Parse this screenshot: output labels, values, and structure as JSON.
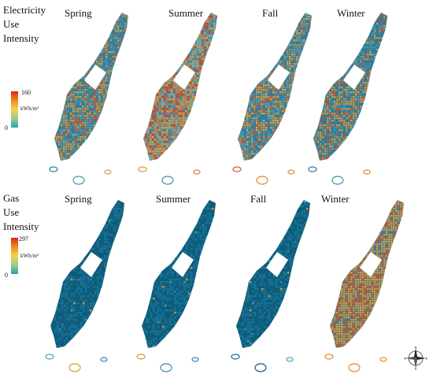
{
  "rows": [
    {
      "title": "Electricity Use Intensity",
      "title_lines": [
        "Electricity",
        "Use",
        "Intensity"
      ],
      "legend": {
        "max": "160",
        "min": "0",
        "unit": "kWh/m²",
        "colors": [
          "#d7261b",
          "#f08a23",
          "#f3d34a",
          "#9ccd8a",
          "#27a0b8"
        ]
      },
      "seasons": [
        {
          "label": "Spring",
          "palette": [
            "#2f7fa0",
            "#4c95a8",
            "#c9a443",
            "#e08a2c",
            "#d85a24"
          ],
          "warm_share": 0.45
        },
        {
          "label": "Summer",
          "palette": [
            "#4e8fa4",
            "#88b0a0",
            "#e09a35",
            "#e27a2a",
            "#d6401f"
          ],
          "warm_share": 0.6
        },
        {
          "label": "Fall",
          "palette": [
            "#2f7fa0",
            "#5a9aa8",
            "#cfa846",
            "#e08a2c",
            "#d85a24"
          ],
          "warm_share": 0.45
        },
        {
          "label": "Winter",
          "palette": [
            "#2c7c9d",
            "#4e92a7",
            "#c89f42",
            "#e08a2c",
            "#d45322"
          ],
          "warm_share": 0.42
        }
      ]
    },
    {
      "title": "Gas Use Intensity",
      "title_lines": [
        "Gas",
        "Use",
        "Intensity"
      ],
      "legend": {
        "max": "297",
        "min": "0",
        "unit": "kWh/m²",
        "colors": [
          "#d7261b",
          "#f08a23",
          "#f3d34a",
          "#9ccd8a",
          "#27a0b8"
        ]
      },
      "seasons": [
        {
          "label": "Spring",
          "palette": [
            "#0f5d7c",
            "#1a7596",
            "#2f8eab",
            "#4aa2b6",
            "#e0962f"
          ],
          "warm_share": 0.02
        },
        {
          "label": "Summer",
          "palette": [
            "#0f5d7c",
            "#1a7596",
            "#2f8eab",
            "#4aa2b6",
            "#e0962f"
          ],
          "warm_share": 0.02
        },
        {
          "label": "Fall",
          "palette": [
            "#0f5d7c",
            "#1a7596",
            "#2f8eab",
            "#4aa2b6",
            "#e0962f"
          ],
          "warm_share": 0.03
        },
        {
          "label": "Winter",
          "palette": [
            "#2f7fa0",
            "#c9973c",
            "#d99a3b",
            "#e08a2c",
            "#d45322"
          ],
          "warm_share": 0.8
        }
      ]
    }
  ],
  "compass": {
    "icon": "compass-rose-icon",
    "n": "N",
    "s": "S",
    "e": "E",
    "w": "W"
  }
}
